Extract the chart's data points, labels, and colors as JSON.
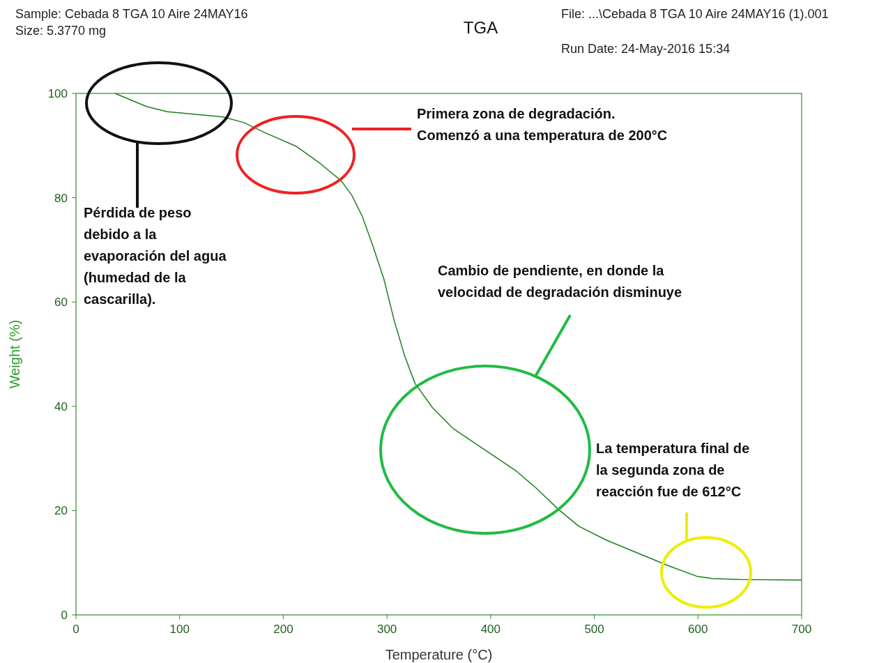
{
  "chart_data": {
    "type": "line",
    "title": "TGA",
    "xlabel": "Temperature (°C)",
    "ylabel": "Weight (%)",
    "xlim": [
      0,
      700
    ],
    "xticks": [
      0,
      100,
      200,
      300,
      400,
      500,
      600,
      700
    ],
    "ylim": [
      0,
      100
    ],
    "yticks": [
      0,
      20,
      40,
      60,
      80,
      100
    ],
    "grid": false,
    "series": [
      {
        "color": "#1e7d1e",
        "x": [
          37.7,
          51,
          68,
          88,
          115,
          142,
          162,
          182,
          213,
          236,
          256,
          266,
          276,
          286,
          297,
          307,
          317,
          327,
          344,
          364,
          397,
          424,
          444,
          465,
          485,
          512,
          545,
          572,
          599,
          613,
          640,
          700
        ],
        "values": [
          100,
          98.9,
          97.5,
          96.5,
          96.0,
          95.5,
          94.4,
          92.5,
          89.8,
          86.5,
          83.2,
          80.5,
          76.5,
          71,
          64.4,
          56.4,
          49.7,
          44.4,
          39.7,
          35.7,
          31.3,
          27.7,
          24.3,
          20.3,
          17,
          14.3,
          11.6,
          9.4,
          7.4,
          7.0,
          6.8,
          6.7
        ]
      }
    ],
    "annotations": [
      "Sample: Cebada 8 TGA 10 Aire 24MAY16",
      "Size:  5.3770 mg",
      "File: ...\\Cebada 8 TGA 10 Aire 24MAY16 (1).001",
      "Run Date: 24-May-2016 15:34",
      "Pérdida de peso\ndebido a la\nevaporación del agua\n(humedad de la\ncascarilla).",
      "Primera zona de degradación.\nComenzó a una temperatura de 200°C",
      "Cambio de pendiente, en donde la\nvelocidad de degradación disminuye",
      "La temperatura final de\nla segunda zona de\nreacción fue de 612°C"
    ]
  }
}
